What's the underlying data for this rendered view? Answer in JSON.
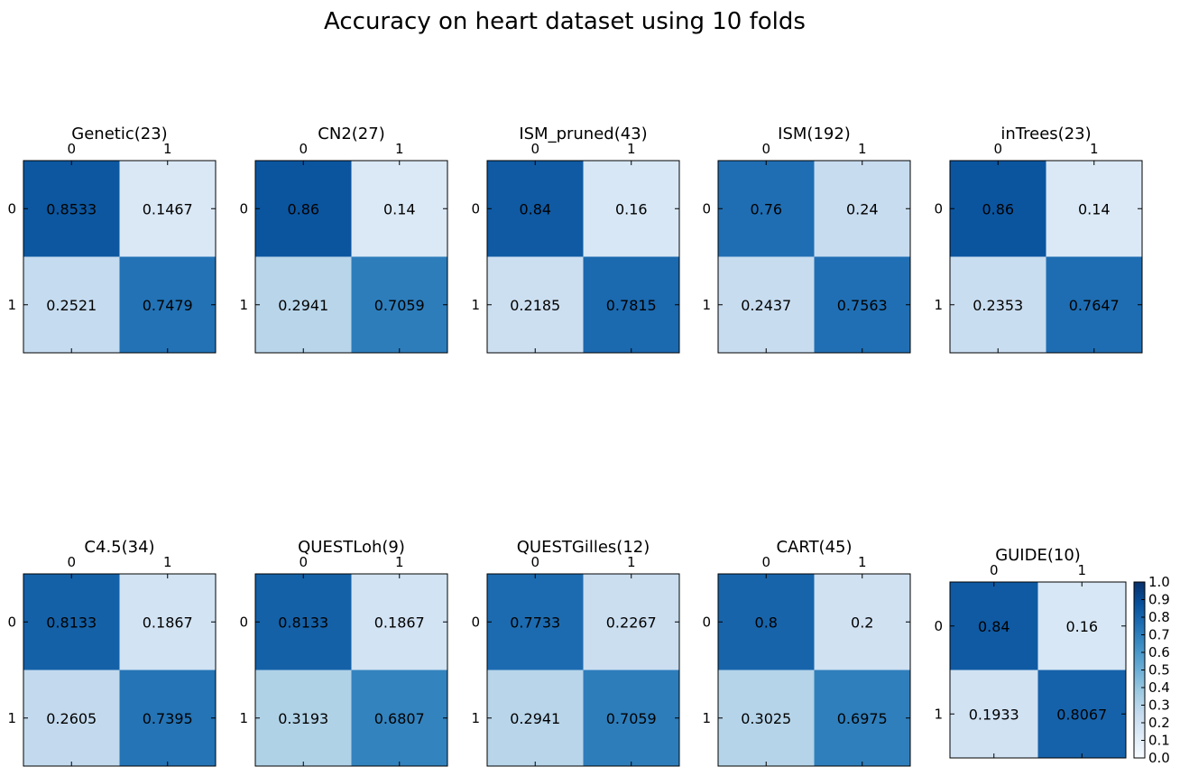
{
  "chart_data": {
    "type": "heatmap",
    "title": "Accuracy on heart dataset using 10 folds",
    "colormap": "Blues",
    "colorbar": {
      "range": [
        0.0,
        1.0
      ],
      "ticks": [
        "0.0",
        "0.1",
        "0.2",
        "0.3",
        "0.4",
        "0.5",
        "0.6",
        "0.7",
        "0.8",
        "0.9",
        "1.0"
      ]
    },
    "x_ticks": [
      "0",
      "1"
    ],
    "y_ticks": [
      "0",
      "1"
    ],
    "panels": [
      {
        "title": "Genetic(23)",
        "matrix": [
          [
            0.8533,
            0.1467
          ],
          [
            0.2521,
            0.7479
          ]
        ],
        "labels": [
          [
            "0.8533",
            "0.1467"
          ],
          [
            "0.2521",
            "0.7479"
          ]
        ]
      },
      {
        "title": "CN2(27)",
        "matrix": [
          [
            0.86,
            0.14
          ],
          [
            0.2941,
            0.7059
          ]
        ],
        "labels": [
          [
            "0.86",
            "0.14"
          ],
          [
            "0.2941",
            "0.7059"
          ]
        ]
      },
      {
        "title": "ISM_pruned(43)",
        "matrix": [
          [
            0.84,
            0.16
          ],
          [
            0.2185,
            0.7815
          ]
        ],
        "labels": [
          [
            "0.84",
            "0.16"
          ],
          [
            "0.2185",
            "0.7815"
          ]
        ]
      },
      {
        "title": "ISM(192)",
        "matrix": [
          [
            0.76,
            0.24
          ],
          [
            0.2437,
            0.7563
          ]
        ],
        "labels": [
          [
            "0.76",
            "0.24"
          ],
          [
            "0.2437",
            "0.7563"
          ]
        ]
      },
      {
        "title": "inTrees(23)",
        "matrix": [
          [
            0.86,
            0.14
          ],
          [
            0.2353,
            0.7647
          ]
        ],
        "labels": [
          [
            "0.86",
            "0.14"
          ],
          [
            "0.2353",
            "0.7647"
          ]
        ]
      },
      {
        "title": "C4.5(34)",
        "matrix": [
          [
            0.8133,
            0.1867
          ],
          [
            0.2605,
            0.7395
          ]
        ],
        "labels": [
          [
            "0.8133",
            "0.1867"
          ],
          [
            "0.2605",
            "0.7395"
          ]
        ]
      },
      {
        "title": "QUESTLoh(9)",
        "matrix": [
          [
            0.8133,
            0.1867
          ],
          [
            0.3193,
            0.6807
          ]
        ],
        "labels": [
          [
            "0.8133",
            "0.1867"
          ],
          [
            "0.3193",
            "0.6807"
          ]
        ]
      },
      {
        "title": "QUESTGilles(12)",
        "matrix": [
          [
            0.7733,
            0.2267
          ],
          [
            0.2941,
            0.7059
          ]
        ],
        "labels": [
          [
            "0.7733",
            "0.2267"
          ],
          [
            "0.2941",
            "0.7059"
          ]
        ]
      },
      {
        "title": "CART(45)",
        "matrix": [
          [
            0.8,
            0.2
          ],
          [
            0.3025,
            0.6975
          ]
        ],
        "labels": [
          [
            "0.8",
            "0.2"
          ],
          [
            "0.3025",
            "0.6975"
          ]
        ]
      },
      {
        "title": "GUIDE(10)",
        "matrix": [
          [
            0.84,
            0.16
          ],
          [
            0.1933,
            0.8067
          ]
        ],
        "labels": [
          [
            "0.84",
            "0.16"
          ],
          [
            "0.1933",
            "0.8067"
          ]
        ]
      }
    ]
  }
}
